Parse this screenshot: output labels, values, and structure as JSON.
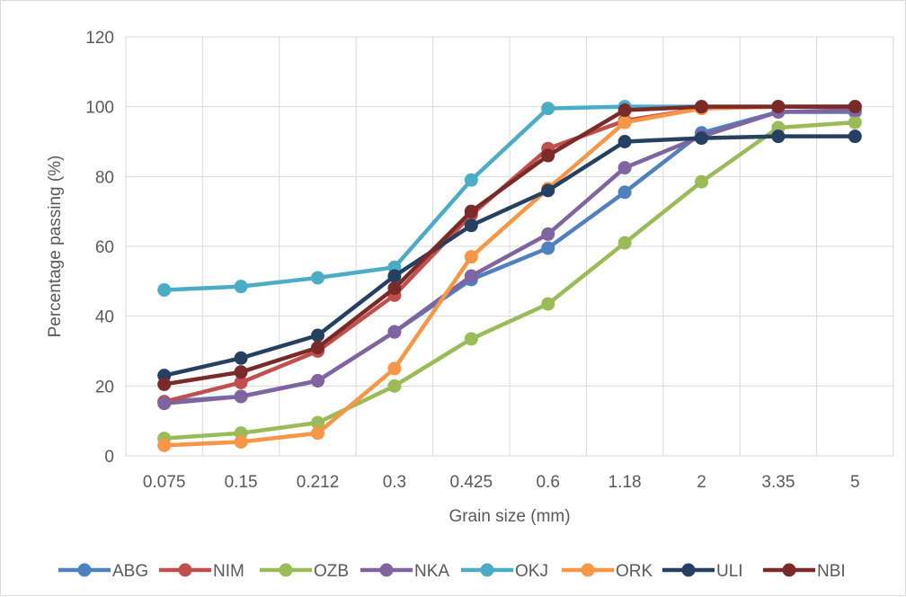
{
  "chart_data": {
    "type": "line",
    "title": "",
    "xlabel": "Grain size (mm)",
    "ylabel": "Percentage passing (%)",
    "categories": [
      "0.075",
      "0.15",
      "0.212",
      "0.3",
      "0.425",
      "0.6",
      "1.18",
      "2",
      "3.35",
      "5"
    ],
    "ylim": [
      0,
      120
    ],
    "yticks": [
      0,
      20,
      40,
      60,
      80,
      100,
      120
    ],
    "grid": "both",
    "legend": "bottom",
    "series": [
      {
        "name": "ABG",
        "color": "#4e81bd",
        "values": [
          15.5,
          17,
          21.5,
          35.5,
          50.5,
          59.5,
          75.5,
          92.5,
          98.5,
          98.5
        ]
      },
      {
        "name": "NIM",
        "color": "#c0504d",
        "values": [
          15.5,
          21,
          30,
          46,
          69,
          88,
          96,
          99.5,
          100,
          100
        ]
      },
      {
        "name": "OZB",
        "color": "#9bbb59",
        "values": [
          5,
          6.5,
          9.5,
          20,
          33.5,
          43.5,
          61,
          78.5,
          94,
          95.5
        ]
      },
      {
        "name": "NKA",
        "color": "#8064a2",
        "values": [
          15,
          17,
          21.5,
          35.5,
          51.5,
          63.5,
          82.5,
          91.5,
          98.5,
          99
        ]
      },
      {
        "name": "OKJ",
        "color": "#4bacc6",
        "values": [
          47.5,
          48.5,
          51,
          54,
          79,
          99.5,
          100,
          100,
          100,
          100
        ]
      },
      {
        "name": "ORK",
        "color": "#f79646",
        "values": [
          3,
          4,
          6.5,
          25,
          57,
          76.5,
          95.5,
          99.5,
          100,
          100
        ]
      },
      {
        "name": "ULI",
        "color": "#254061",
        "values": [
          23,
          28,
          34.5,
          51.5,
          66,
          76,
          90,
          91,
          91.5,
          91.5
        ]
      },
      {
        "name": "NBI",
        "color": "#7b2a2a",
        "values": [
          20.5,
          24,
          31,
          48,
          70,
          86,
          99,
          100,
          100,
          100
        ]
      }
    ]
  }
}
